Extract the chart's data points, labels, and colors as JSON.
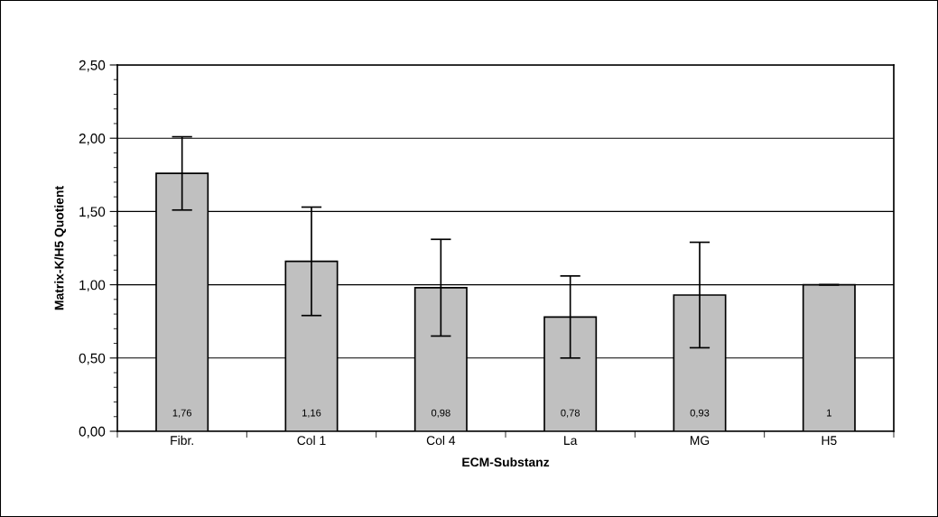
{
  "chart_data": {
    "type": "bar",
    "xlabel": "ECM-Substanz",
    "ylabel": "Matrix-K/H5 Quotient",
    "categories": [
      "Fibr.",
      "Col 1",
      "Col 4",
      "La",
      "MG",
      "H5"
    ],
    "series": [
      {
        "color": "#c0c0c0",
        "values": [
          1.76,
          1.16,
          0.98,
          0.78,
          0.93,
          1
        ],
        "errors": [
          0.25,
          0.37,
          0.33,
          0.28,
          0.36,
          0
        ],
        "value_labels": [
          "1,76",
          "1,16",
          "0,98",
          "0,78",
          "0,93",
          "1"
        ]
      }
    ],
    "ylim": [
      0,
      2.5
    ],
    "yticks": [
      {
        "value": 0,
        "label": "0,00"
      },
      {
        "value": 0.5,
        "label": "0,50"
      },
      {
        "value": 1,
        "label": "1,00"
      },
      {
        "value": 1.5,
        "label": "1,50"
      },
      {
        "value": 2,
        "label": "2,00"
      },
      {
        "value": 2.5,
        "label": "2,50"
      }
    ],
    "grid": "y"
  }
}
